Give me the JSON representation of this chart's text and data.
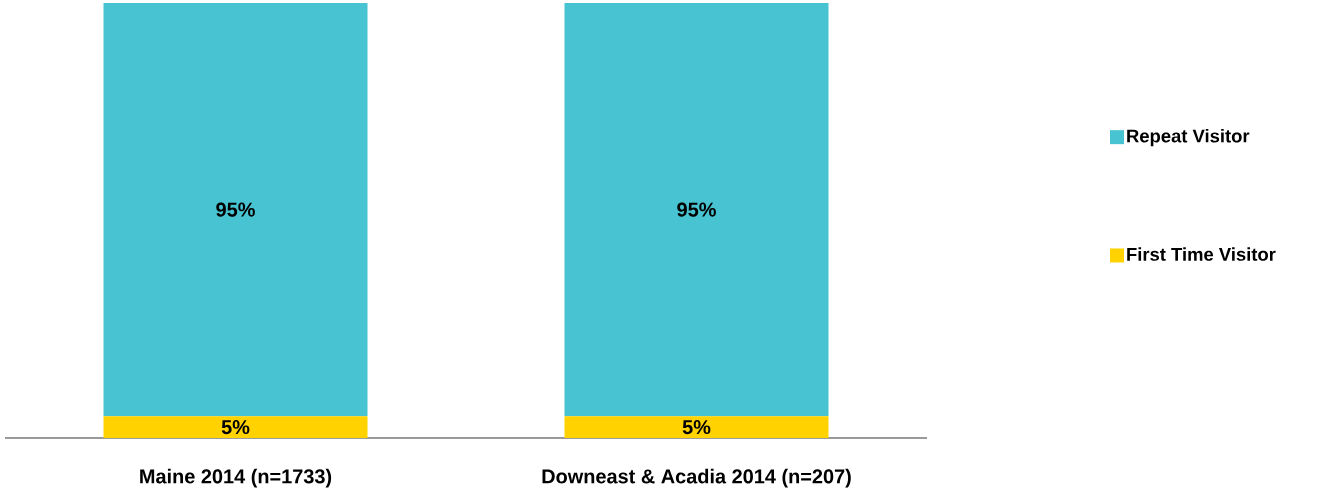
{
  "chart_data": {
    "type": "bar",
    "stacked": true,
    "categories": [
      "Maine 2014 (n=1733)",
      "Downeast & Acadia 2014 (n=207)"
    ],
    "series": [
      {
        "name": "First Time Visitor",
        "color": "#ffd200",
        "values": [
          5,
          5
        ],
        "value_labels": [
          "5%",
          "5%"
        ]
      },
      {
        "name": "Repeat Visitor",
        "color": "#47c3d2",
        "values": [
          95,
          95
        ],
        "value_labels": [
          "95%",
          "95%"
        ]
      }
    ],
    "legend": "right"
  }
}
